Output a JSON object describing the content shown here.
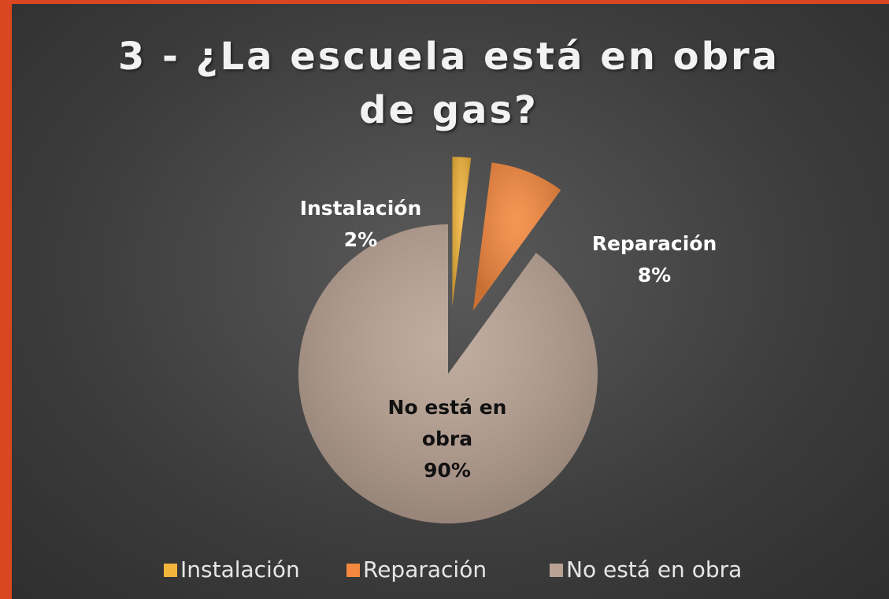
{
  "chart_data": {
    "type": "pie",
    "title": "3 - ¿La escuela está en obra de gas?",
    "categories": [
      "Instalación",
      "Reparación",
      "No está en obra"
    ],
    "values": [
      2,
      8,
      90
    ],
    "value_labels": [
      "2%",
      "8%",
      "90%"
    ],
    "colors": [
      "#f2b53c",
      "#f4883e",
      "#b9a293"
    ],
    "explode": [
      true,
      true,
      false
    ],
    "legend": "bottom"
  }
}
